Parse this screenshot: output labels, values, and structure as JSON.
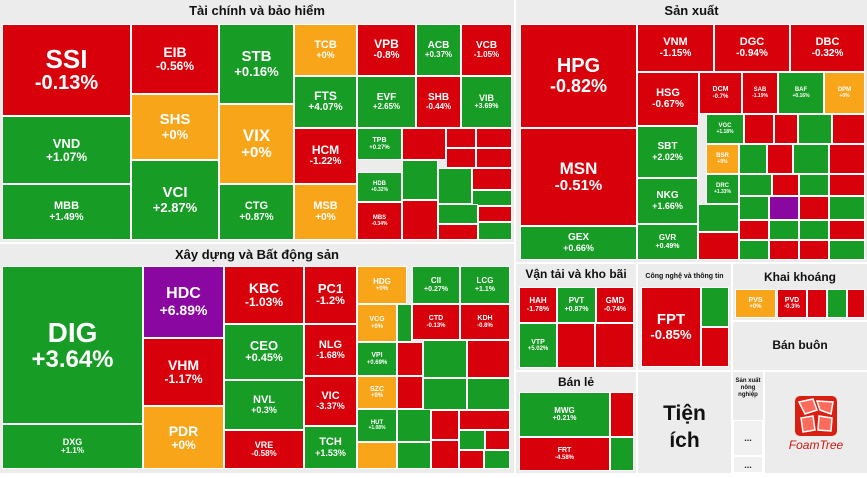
{
  "colors": {
    "red": "#d7000b",
    "green": "#179c25",
    "yellow": "#f9a51a",
    "purple": "#8a08a1",
    "gray": "#ececec"
  },
  "sections": {
    "finance": "Tài chính và bảo hiểm",
    "construction": "Xây dựng và Bất động sản",
    "manufacturing": "Sản xuất",
    "transport": "Vận tải và kho bãi",
    "tech": "Công nghệ và thông tin",
    "mining": "Khai khoáng",
    "retail": "Bán lẻ",
    "wholesale": "Bán buôn",
    "utilities": "Tiện ích",
    "agri": "Sản xuất nông nghiệp"
  },
  "logo": "FoamTree",
  "ellipsis": "...",
  "chart_data": {
    "type": "treemap",
    "stocks": [
      {
        "sector": "finance",
        "ticker": "SSI",
        "change": "-0.13%",
        "color": "red"
      },
      {
        "sector": "finance",
        "ticker": "EIB",
        "change": "-0.56%",
        "color": "red"
      },
      {
        "sector": "finance",
        "ticker": "STB",
        "change": "+0.16%",
        "color": "green"
      },
      {
        "sector": "finance",
        "ticker": "TCB",
        "change": "+0%",
        "color": "yellow"
      },
      {
        "sector": "finance",
        "ticker": "VPB",
        "change": "-0.8%",
        "color": "red"
      },
      {
        "sector": "finance",
        "ticker": "ACB",
        "change": "+0.37%",
        "color": "green"
      },
      {
        "sector": "finance",
        "ticker": "VCB",
        "change": "-1.05%",
        "color": "red"
      },
      {
        "sector": "finance",
        "ticker": "FTS",
        "change": "+4.07%",
        "color": "green"
      },
      {
        "sector": "finance",
        "ticker": "EVF",
        "change": "+2.65%",
        "color": "green"
      },
      {
        "sector": "finance",
        "ticker": "SHB",
        "change": "-0.44%",
        "color": "red"
      },
      {
        "sector": "finance",
        "ticker": "VIB",
        "change": "+3.69%",
        "color": "green"
      },
      {
        "sector": "finance",
        "ticker": "VND",
        "change": "+1.07%",
        "color": "green"
      },
      {
        "sector": "finance",
        "ticker": "SHS",
        "change": "+0%",
        "color": "yellow"
      },
      {
        "sector": "finance",
        "ticker": "VIX",
        "change": "+0%",
        "color": "yellow"
      },
      {
        "sector": "finance",
        "ticker": "HCM",
        "change": "-1.22%",
        "color": "red"
      },
      {
        "sector": "finance",
        "ticker": "TPB",
        "change": "+0.27%",
        "color": "green"
      },
      {
        "sector": "finance",
        "ticker": "HDB",
        "change": "+0.32%",
        "color": "green"
      },
      {
        "sector": "finance",
        "ticker": "MBB",
        "change": "+1.49%",
        "color": "green"
      },
      {
        "sector": "finance",
        "ticker": "VCI",
        "change": "+2.87%",
        "color": "green"
      },
      {
        "sector": "finance",
        "ticker": "CTG",
        "change": "+0.87%",
        "color": "green"
      },
      {
        "sector": "finance",
        "ticker": "MSB",
        "change": "+0%",
        "color": "yellow"
      },
      {
        "sector": "finance",
        "ticker": "MBS",
        "change": "-0.34%",
        "color": "red"
      },
      {
        "sector": "construction",
        "ticker": "DIG",
        "change": "+3.64%",
        "color": "green"
      },
      {
        "sector": "construction",
        "ticker": "DXG",
        "change": "+1.1%",
        "color": "green"
      },
      {
        "sector": "construction",
        "ticker": "HDC",
        "change": "+6.89%",
        "color": "purple"
      },
      {
        "sector": "construction",
        "ticker": "VHM",
        "change": "-1.17%",
        "color": "red"
      },
      {
        "sector": "construction",
        "ticker": "PDR",
        "change": "+0%",
        "color": "yellow"
      },
      {
        "sector": "construction",
        "ticker": "KBC",
        "change": "-1.03%",
        "color": "red"
      },
      {
        "sector": "construction",
        "ticker": "CEO",
        "change": "+0.45%",
        "color": "green"
      },
      {
        "sector": "construction",
        "ticker": "NVL",
        "change": "+0.3%",
        "color": "green"
      },
      {
        "sector": "construction",
        "ticker": "VRE",
        "change": "-0.58%",
        "color": "red"
      },
      {
        "sector": "construction",
        "ticker": "PC1",
        "change": "-1.2%",
        "color": "red"
      },
      {
        "sector": "construction",
        "ticker": "NLG",
        "change": "-1.68%",
        "color": "red"
      },
      {
        "sector": "construction",
        "ticker": "VIC",
        "change": "-3.37%",
        "color": "red"
      },
      {
        "sector": "construction",
        "ticker": "TCH",
        "change": "+1.53%",
        "color": "green"
      },
      {
        "sector": "construction",
        "ticker": "HDG",
        "change": "+0%",
        "color": "yellow"
      },
      {
        "sector": "construction",
        "ticker": "VCG",
        "change": "+0%",
        "color": "yellow"
      },
      {
        "sector": "construction",
        "ticker": "VPI",
        "change": "+0.69%",
        "color": "green"
      },
      {
        "sector": "construction",
        "ticker": "SZC",
        "change": "+0%",
        "color": "yellow"
      },
      {
        "sector": "construction",
        "ticker": "HUT",
        "change": "+1.08%",
        "color": "green"
      },
      {
        "sector": "construction",
        "ticker": "CII",
        "change": "+0.27%",
        "color": "green"
      },
      {
        "sector": "construction",
        "ticker": "LCG",
        "change": "+1.1%",
        "color": "green"
      },
      {
        "sector": "construction",
        "ticker": "CTD",
        "change": "-0.13%",
        "color": "red"
      },
      {
        "sector": "construction",
        "ticker": "KDH",
        "change": "-0.8%",
        "color": "red"
      },
      {
        "sector": "manufacturing",
        "ticker": "HPG",
        "change": "-0.82%",
        "color": "red"
      },
      {
        "sector": "manufacturing",
        "ticker": "VNM",
        "change": "-1.15%",
        "color": "red"
      },
      {
        "sector": "manufacturing",
        "ticker": "DGC",
        "change": "-0.94%",
        "color": "red"
      },
      {
        "sector": "manufacturing",
        "ticker": "DBC",
        "change": "-0.32%",
        "color": "red"
      },
      {
        "sector": "manufacturing",
        "ticker": "HSG",
        "change": "-0.67%",
        "color": "red"
      },
      {
        "sector": "manufacturing",
        "ticker": "DCM",
        "change": "-0.7%",
        "color": "red"
      },
      {
        "sector": "manufacturing",
        "ticker": "SAB",
        "change": "-1.19%",
        "color": "red"
      },
      {
        "sector": "manufacturing",
        "ticker": "BAF",
        "change": "+0.16%",
        "color": "green"
      },
      {
        "sector": "manufacturing",
        "ticker": "DPM",
        "change": "+0%",
        "color": "yellow"
      },
      {
        "sector": "manufacturing",
        "ticker": "MSN",
        "change": "-0.51%",
        "color": "red"
      },
      {
        "sector": "manufacturing",
        "ticker": "GEX",
        "change": "+0.66%",
        "color": "green"
      },
      {
        "sector": "manufacturing",
        "ticker": "SBT",
        "change": "+2.02%",
        "color": "green"
      },
      {
        "sector": "manufacturing",
        "ticker": "NKG",
        "change": "+1.66%",
        "color": "green"
      },
      {
        "sector": "manufacturing",
        "ticker": "GVR",
        "change": "+0.49%",
        "color": "green"
      },
      {
        "sector": "manufacturing",
        "ticker": "VGC",
        "change": "+1.18%",
        "color": "green"
      },
      {
        "sector": "manufacturing",
        "ticker": "BSR",
        "change": "+0%",
        "color": "yellow"
      },
      {
        "sector": "manufacturing",
        "ticker": "DRC",
        "change": "+1.33%",
        "color": "green"
      },
      {
        "sector": "transport",
        "ticker": "HAH",
        "change": "-1.78%",
        "color": "red"
      },
      {
        "sector": "transport",
        "ticker": "PVT",
        "change": "+0.87%",
        "color": "green"
      },
      {
        "sector": "transport",
        "ticker": "GMD",
        "change": "-0.74%",
        "color": "red"
      },
      {
        "sector": "transport",
        "ticker": "VTP",
        "change": "+5.02%",
        "color": "green"
      },
      {
        "sector": "tech",
        "ticker": "FPT",
        "change": "-0.85%",
        "color": "red"
      },
      {
        "sector": "mining",
        "ticker": "PVS",
        "change": "+0%",
        "color": "yellow"
      },
      {
        "sector": "mining",
        "ticker": "PVD",
        "change": "-0.3%",
        "color": "red"
      },
      {
        "sector": "retail",
        "ticker": "MWG",
        "change": "+0.21%",
        "color": "green"
      },
      {
        "sector": "retail",
        "ticker": "FRT",
        "change": "-4.58%",
        "color": "red"
      }
    ]
  }
}
